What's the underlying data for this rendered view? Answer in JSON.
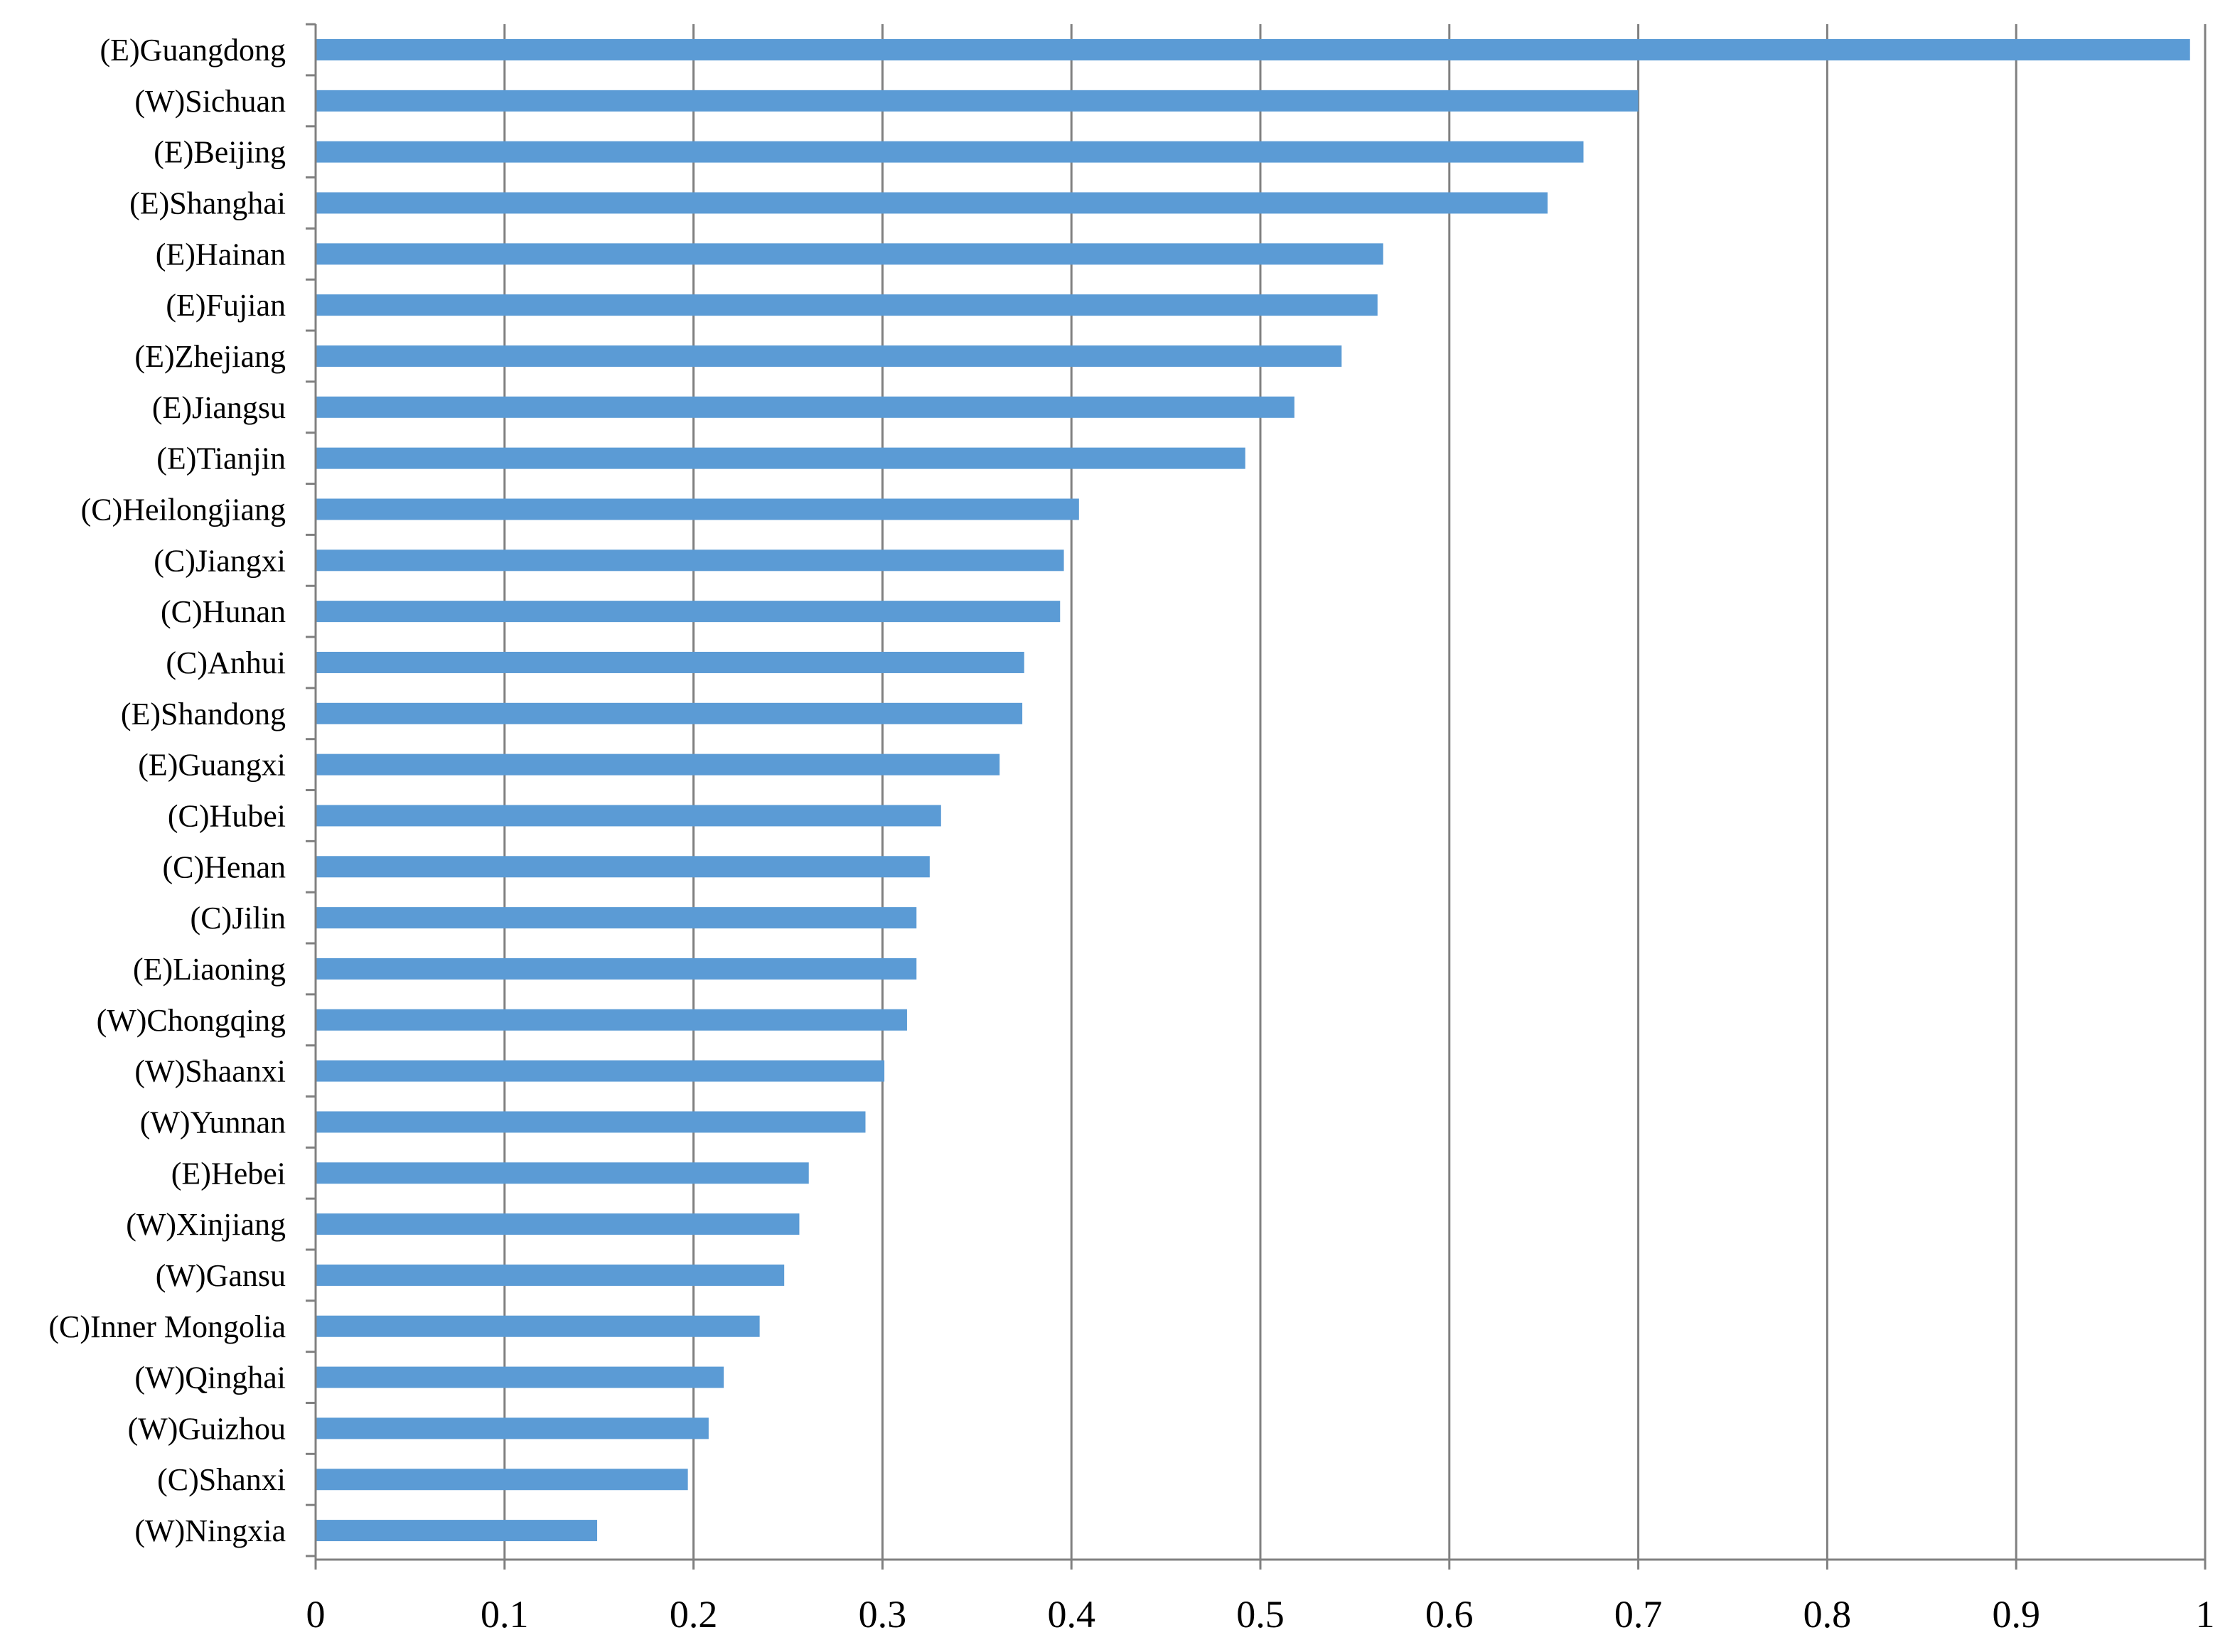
{
  "chart_data": {
    "type": "bar",
    "orientation": "horizontal",
    "title": "",
    "xlabel": "",
    "ylabel": "",
    "xlim": [
      0,
      1
    ],
    "x_ticks": [
      0,
      0.1,
      0.2,
      0.3,
      0.4,
      0.5,
      0.6,
      0.7,
      0.8,
      0.9,
      1
    ],
    "x_tick_labels": [
      "0",
      "0.1",
      "0.2",
      "0.3",
      "0.4",
      "0.5",
      "0.6",
      "0.7",
      "0.8",
      "0.9",
      "1"
    ],
    "grid": "vertical major gridlines",
    "legend": "none",
    "categories": [
      "(E)Guangdong",
      "(W)Sichuan",
      "(E)Beijing",
      "(E)Shanghai",
      "(E)Hainan",
      "(E)Fujian",
      "(E)Zhejiang",
      "(E)Jiangsu",
      "(E)Tianjin",
      "(C)Heilongjiang",
      "(C)Jiangxi",
      "(C)Hunan",
      "(C)Anhui",
      "(E)Shandong",
      "(E)Guangxi",
      "(C)Hubei",
      "(C)Henan",
      "(C)Jilin",
      "(E)Liaoning",
      "(W)Chongqing",
      "(W)Shaanxi",
      "(W)Yunnan",
      "(E)Hebei",
      "(W)Xinjiang",
      "(W)Gansu",
      "(C)Inner Mongolia",
      "(W)Qinghai",
      "(W)Guizhou",
      "(C)Shanxi",
      "(W)Ningxia"
    ],
    "values": [
      0.992,
      0.7,
      0.671,
      0.652,
      0.565,
      0.562,
      0.543,
      0.518,
      0.492,
      0.404,
      0.396,
      0.394,
      0.375,
      0.374,
      0.362,
      0.331,
      0.325,
      0.318,
      0.318,
      0.313,
      0.301,
      0.291,
      0.261,
      0.256,
      0.248,
      0.235,
      0.216,
      0.208,
      0.197,
      0.149
    ],
    "colors": {
      "bar": "#5b9bd5",
      "grid": "#808080",
      "axis": "#808080",
      "text": "#000000"
    }
  }
}
